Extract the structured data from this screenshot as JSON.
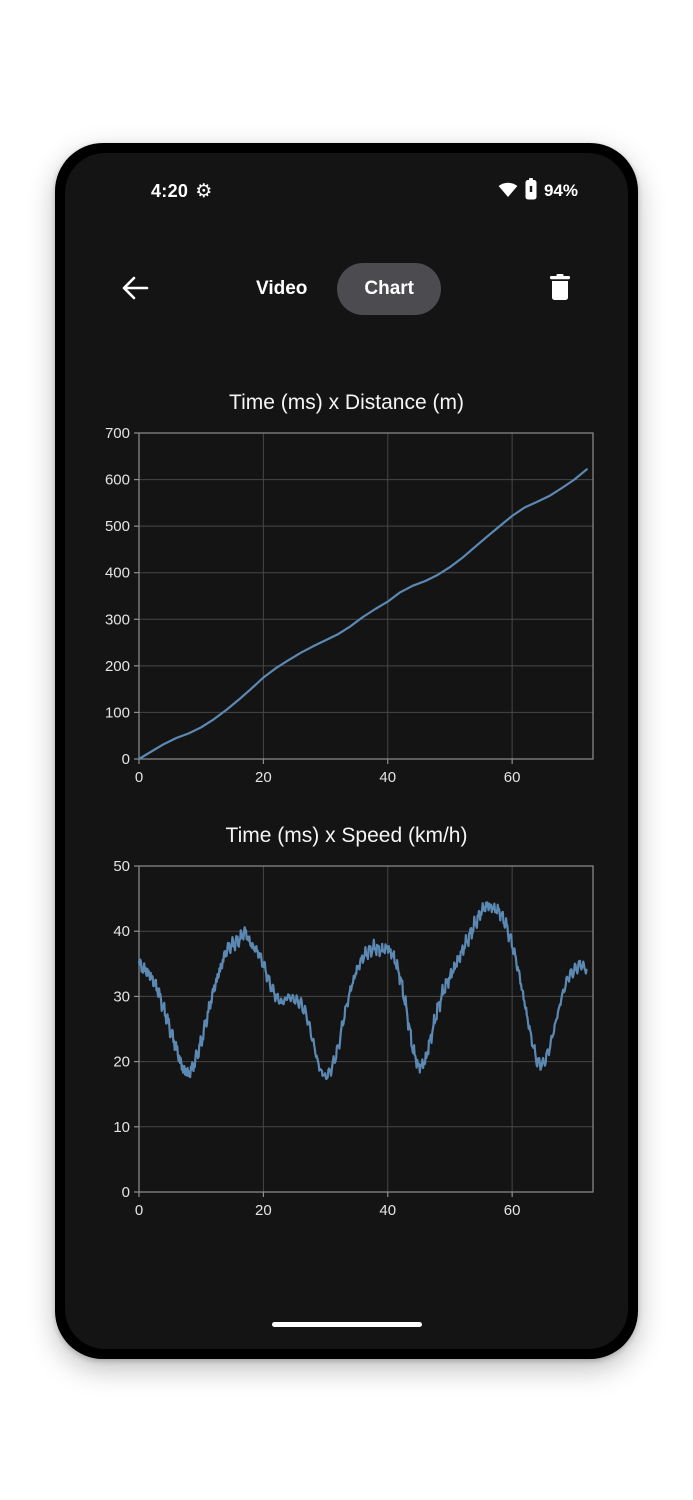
{
  "status_bar": {
    "time": "4:20",
    "battery": "94%"
  },
  "app_bar": {
    "video_label": "Video",
    "chart_label": "Chart"
  },
  "colors": {
    "screen_bg": "#141414",
    "line": "#5b89b4",
    "grid": "#474747",
    "border": "#8f8f8f",
    "pill_bg": "#4b4b50"
  },
  "chart_data": [
    {
      "type": "line",
      "title": "Time (ms) x Distance (m)",
      "xlabel": "Time (ms)",
      "ylabel": "Distance (m)",
      "xlim": [
        0,
        73
      ],
      "ylim": [
        0,
        700
      ],
      "xticks": [
        0,
        20,
        40,
        60
      ],
      "yticks": [
        0,
        100,
        200,
        300,
        400,
        500,
        600,
        700
      ],
      "grid": true,
      "legend": "none",
      "line_color": "#5b89b4",
      "grid_color": "#474747",
      "border_color": "#8f8f8f",
      "noise_amplitude": 0,
      "x": [
        0,
        2,
        4,
        6,
        8,
        10,
        12,
        14,
        16,
        18,
        20,
        22,
        24,
        26,
        28,
        30,
        32,
        34,
        36,
        38,
        40,
        42,
        44,
        46,
        48,
        50,
        52,
        54,
        56,
        58,
        60,
        62,
        64,
        66,
        68,
        70,
        72
      ],
      "y": [
        0,
        16,
        32,
        45,
        55,
        68,
        85,
        105,
        127,
        150,
        175,
        195,
        212,
        228,
        242,
        255,
        268,
        285,
        305,
        322,
        338,
        358,
        372,
        382,
        395,
        412,
        432,
        455,
        478,
        500,
        522,
        540,
        552,
        565,
        582,
        600,
        622
      ]
    },
    {
      "type": "line",
      "title": "Time (ms) x Speed (km/h)",
      "xlabel": "Time (ms)",
      "ylabel": "Speed (km/h)",
      "xlim": [
        0,
        73
      ],
      "ylim": [
        0,
        50
      ],
      "xticks": [
        0,
        20,
        40,
        60
      ],
      "yticks": [
        0,
        10,
        20,
        30,
        40,
        50
      ],
      "grid": true,
      "legend": "none",
      "line_color": "#5b89b4",
      "grid_color": "#474747",
      "border_color": "#8f8f8f",
      "noise_amplitude": 1.1,
      "x": [
        0,
        1,
        2,
        3,
        4,
        5,
        6,
        7,
        8,
        9,
        10,
        11,
        12,
        13,
        14,
        15,
        16,
        17,
        18,
        19,
        20,
        21,
        22,
        23,
        24,
        25,
        26,
        27,
        28,
        29,
        30,
        31,
        32,
        33,
        34,
        35,
        36,
        37,
        38,
        39,
        40,
        41,
        42,
        43,
        44,
        45,
        46,
        47,
        48,
        49,
        50,
        51,
        52,
        53,
        54,
        55,
        56,
        57,
        58,
        59,
        60,
        61,
        62,
        63,
        64,
        65,
        66,
        67,
        68,
        69,
        70,
        71,
        72
      ],
      "y": [
        35,
        34,
        33,
        31,
        28,
        25,
        22,
        19,
        18,
        20,
        23,
        27,
        31,
        34,
        37,
        38,
        38.5,
        40,
        38,
        37,
        35,
        32,
        30,
        29,
        30,
        29.5,
        29,
        27,
        23,
        19,
        17.5,
        19,
        22,
        27,
        31,
        34,
        36,
        37,
        37.5,
        37,
        37.5,
        36,
        33,
        28,
        22,
        19,
        20,
        24,
        28,
        31,
        33,
        35,
        37,
        39,
        41,
        43,
        44,
        43.5,
        43,
        41,
        38,
        34,
        29,
        24,
        20,
        19.5,
        22,
        26,
        30,
        33,
        34,
        35,
        34
      ]
    }
  ]
}
